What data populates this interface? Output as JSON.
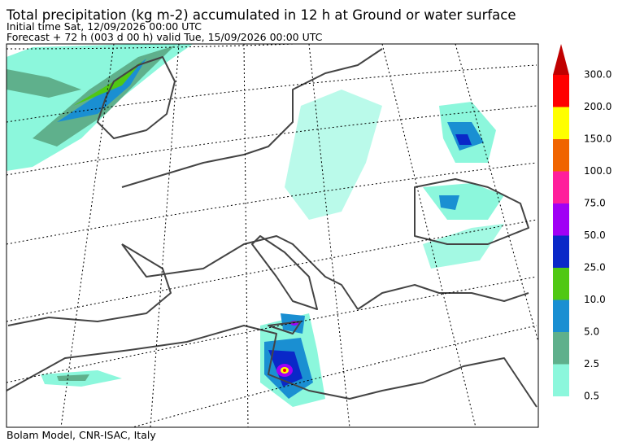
{
  "header": {
    "title": "Total precipitation (kg m-2) accumulated in  12 h at Ground or water surface",
    "initial_time": "Initial time  Sat, 12/09/2026  00:00 UTC",
    "forecast": "Forecast  +  72 h  (003 d 00 h)  valid Tue, 15/09/2026 00:00 UTC"
  },
  "legend": {
    "levels": [
      {
        "label": "0.5",
        "color": "#8cf7dc"
      },
      {
        "label": "2.5",
        "color": "#5fb08c"
      },
      {
        "label": "5.0",
        "color": "#1a8fd2"
      },
      {
        "label": "10.0",
        "color": "#50c814"
      },
      {
        "label": "25.0",
        "color": "#0a28c8"
      },
      {
        "label": "50.0",
        "color": "#a000f5"
      },
      {
        "label": "75.0",
        "color": "#ff1e9b"
      },
      {
        "label": "100.0",
        "color": "#f06400"
      },
      {
        "label": "150.0",
        "color": "#ffff00"
      },
      {
        "label": "200.0",
        "color": "#ff0000"
      },
      {
        "label": "300.0",
        "color": "#c00000"
      }
    ]
  },
  "footer": "Bolam Model, CNR-ISAC, Italy"
}
